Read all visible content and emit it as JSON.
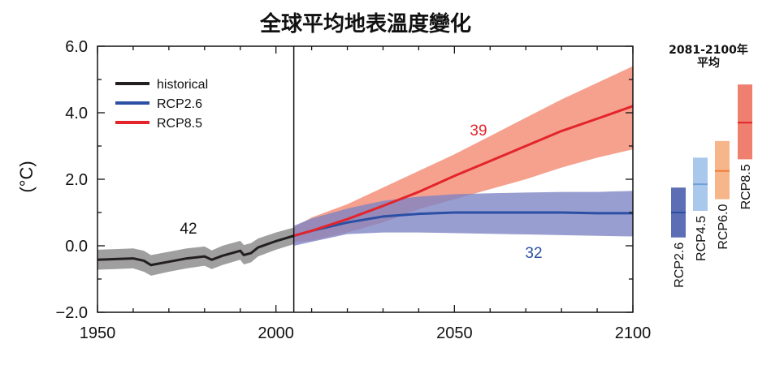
{
  "chart_data": {
    "type": "line",
    "title": "全球平均地表溫度變化",
    "ylabel": "(°C)",
    "xlabel": "",
    "xlim": [
      1950,
      2100
    ],
    "ylim": [
      -2.0,
      6.0
    ],
    "x_ticks": [
      1950,
      2000,
      2050,
      2100
    ],
    "x_tick_labels": [
      "1950",
      "2000",
      "2050",
      "2100"
    ],
    "y_ticks": [
      -2.0,
      0.0,
      2.0,
      4.0,
      6.0
    ],
    "y_tick_labels": [
      "−2.0",
      "0.0",
      "2.0",
      "4.0",
      "6.0"
    ],
    "divider_year": 2005,
    "legend_position": "top-left",
    "series": [
      {
        "name": "historical",
        "color": "#231f20",
        "band_color": "#9a9a9a",
        "model_count": "42",
        "x": [
          1950,
          1955,
          1960,
          1963,
          1965,
          1970,
          1975,
          1980,
          1982,
          1985,
          1990,
          1991,
          1993,
          1995,
          2000,
          2005
        ],
        "mean": [
          -0.42,
          -0.4,
          -0.38,
          -0.45,
          -0.58,
          -0.48,
          -0.38,
          -0.32,
          -0.42,
          -0.3,
          -0.15,
          -0.28,
          -0.22,
          -0.05,
          0.14,
          0.3
        ],
        "low": [
          -0.72,
          -0.7,
          -0.68,
          -0.78,
          -0.9,
          -0.78,
          -0.68,
          -0.6,
          -0.7,
          -0.58,
          -0.42,
          -0.56,
          -0.5,
          -0.32,
          -0.12,
          0.05
        ],
        "high": [
          -0.12,
          -0.1,
          -0.08,
          -0.15,
          -0.28,
          -0.18,
          -0.08,
          -0.02,
          -0.14,
          0.0,
          0.15,
          0.02,
          0.08,
          0.22,
          0.4,
          0.55
        ]
      },
      {
        "name": "RCP2.6",
        "color": "#2a4fa3",
        "band_color": "#7c83c4",
        "model_count": "32",
        "x": [
          2005,
          2010,
          2020,
          2030,
          2040,
          2050,
          2060,
          2070,
          2080,
          2090,
          2100
        ],
        "mean": [
          0.3,
          0.45,
          0.7,
          0.88,
          0.96,
          1.0,
          1.0,
          1.0,
          1.0,
          0.98,
          0.98
        ],
        "low": [
          0.0,
          0.12,
          0.35,
          0.4,
          0.4,
          0.38,
          0.36,
          0.34,
          0.32,
          0.3,
          0.28
        ],
        "high": [
          0.6,
          0.82,
          1.12,
          1.35,
          1.48,
          1.55,
          1.58,
          1.6,
          1.62,
          1.62,
          1.65
        ]
      },
      {
        "name": "RCP8.5",
        "color": "#e3242b",
        "band_color": "#f2876d",
        "model_count": "39",
        "x": [
          2005,
          2010,
          2020,
          2030,
          2040,
          2050,
          2060,
          2070,
          2080,
          2090,
          2100
        ],
        "mean": [
          0.3,
          0.45,
          0.8,
          1.2,
          1.62,
          2.1,
          2.55,
          3.0,
          3.45,
          3.82,
          4.2
        ],
        "low": [
          0.1,
          0.15,
          0.4,
          0.7,
          1.1,
          1.4,
          1.7,
          2.0,
          2.35,
          2.65,
          2.9
        ],
        "high": [
          0.55,
          0.85,
          1.25,
          1.75,
          2.25,
          2.75,
          3.3,
          3.85,
          4.4,
          4.9,
          5.4
        ]
      }
    ],
    "side_panel": {
      "title_line1": "2081-2100年",
      "title_line2": "平均",
      "scenarios": [
        {
          "name": "RCP2.6",
          "low": 0.25,
          "mean": 1.0,
          "high": 1.75,
          "color": "#5d6fb4",
          "mean_color": "#2a4fa3"
        },
        {
          "name": "RCP4.5",
          "low": 1.05,
          "mean": 1.85,
          "high": 2.65,
          "color": "#aac8ec",
          "mean_color": "#6fa0d8"
        },
        {
          "name": "RCP6.0",
          "low": 1.4,
          "mean": 2.25,
          "high": 3.15,
          "color": "#f7b58a",
          "mean_color": "#ef7f3a"
        },
        {
          "name": "RCP8.5",
          "low": 2.6,
          "mean": 3.7,
          "high": 4.85,
          "color": "#ef7f6e",
          "mean_color": "#e3242b"
        }
      ]
    }
  }
}
